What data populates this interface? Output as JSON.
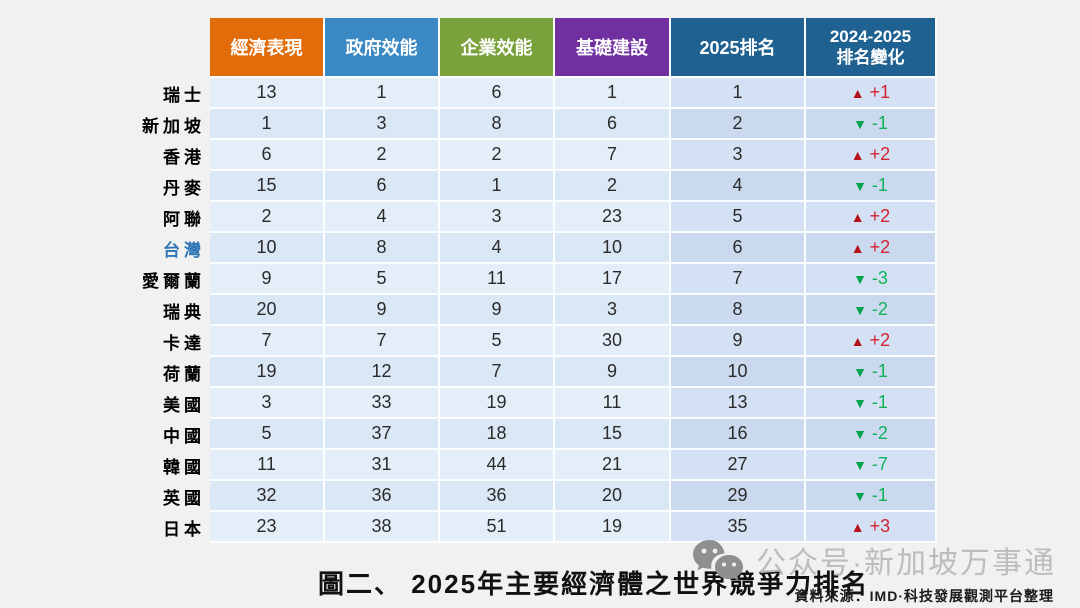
{
  "table": {
    "headers": [
      {
        "label": "經濟表現",
        "color": "#E36C0A"
      },
      {
        "label": "政府效能",
        "color": "#3A89C4"
      },
      {
        "label": "企業效能",
        "color": "#7AA23C"
      },
      {
        "label": "基礎建設",
        "color": "#7030A0"
      },
      {
        "label": "2025排名",
        "color": "#1F6190"
      },
      {
        "label": "2024-2025 排名變化",
        "line1": "2024-2025",
        "line2": "排名變化",
        "color": "#1F6190"
      }
    ],
    "rows": [
      {
        "country": "瑞士",
        "scores": [
          "13",
          "1",
          "6",
          "1"
        ],
        "rank": "1",
        "change": {
          "dir": "up",
          "label": "+1"
        }
      },
      {
        "country": "新加坡",
        "scores": [
          "1",
          "3",
          "8",
          "6"
        ],
        "rank": "2",
        "change": {
          "dir": "down",
          "label": "-1"
        }
      },
      {
        "country": "香港",
        "scores": [
          "6",
          "2",
          "2",
          "7"
        ],
        "rank": "3",
        "change": {
          "dir": "up",
          "label": "+2"
        }
      },
      {
        "country": "丹麥",
        "scores": [
          "15",
          "6",
          "1",
          "2"
        ],
        "rank": "4",
        "change": {
          "dir": "down",
          "label": "-1"
        }
      },
      {
        "country": "阿聯",
        "scores": [
          "2",
          "4",
          "3",
          "23"
        ],
        "rank": "5",
        "change": {
          "dir": "up",
          "label": "+2"
        }
      },
      {
        "country": "台灣",
        "scores": [
          "10",
          "8",
          "4",
          "10"
        ],
        "rank": "6",
        "change": {
          "dir": "up",
          "label": "+2"
        },
        "highlight": true
      },
      {
        "country": "愛爾蘭",
        "scores": [
          "9",
          "5",
          "11",
          "17"
        ],
        "rank": "7",
        "change": {
          "dir": "down",
          "label": "-3"
        }
      },
      {
        "country": "瑞典",
        "scores": [
          "20",
          "9",
          "9",
          "3"
        ],
        "rank": "8",
        "change": {
          "dir": "down",
          "label": "-2"
        }
      },
      {
        "country": "卡達",
        "scores": [
          "7",
          "7",
          "5",
          "30"
        ],
        "rank": "9",
        "change": {
          "dir": "up",
          "label": "+2"
        }
      },
      {
        "country": "荷蘭",
        "scores": [
          "19",
          "12",
          "7",
          "9"
        ],
        "rank": "10",
        "change": {
          "dir": "down",
          "label": "-1"
        }
      },
      {
        "country": "美國",
        "scores": [
          "3",
          "33",
          "19",
          "11"
        ],
        "rank": "13",
        "change": {
          "dir": "down",
          "label": "-1"
        }
      },
      {
        "country": "中國",
        "scores": [
          "5",
          "37",
          "18",
          "15"
        ],
        "rank": "16",
        "change": {
          "dir": "down",
          "label": "-2"
        }
      },
      {
        "country": "韓國",
        "scores": [
          "11",
          "31",
          "44",
          "21"
        ],
        "rank": "27",
        "change": {
          "dir": "down",
          "label": "-7"
        }
      },
      {
        "country": "英國",
        "scores": [
          "32",
          "36",
          "36",
          "20"
        ],
        "rank": "29",
        "change": {
          "dir": "down",
          "label": "-1"
        }
      },
      {
        "country": "日本",
        "scores": [
          "23",
          "38",
          "51",
          "19"
        ],
        "rank": "35",
        "change": {
          "dir": "up",
          "label": "+3"
        }
      }
    ]
  },
  "caption": "圖二、 2025年主要經濟體之世界競爭力排名",
  "watermark": {
    "text": "公众号·新加坡万事通",
    "icon": "wechat-icon"
  },
  "source": "資料來源：IMD·科技發展觀測平台整理",
  "icons": {
    "up_triangle": "▲",
    "down_triangle": "▼"
  },
  "colors": {
    "up_red_triangle": "#B5121B",
    "up_red_text": "#D12330",
    "down_green_triangle": "#00A44C",
    "down_green_text": "#12B25C",
    "highlight_country": "#2E75B6",
    "cell_light_a": "#E3EEF9",
    "cell_light_b": "#DAE7F4",
    "cell_dark_a": "#D4E0F3",
    "cell_dark_b": "#CBD9EE",
    "page_background": "#F1F1F1"
  },
  "chart_data": {
    "type": "table",
    "title": "圖二、 2025年主要經濟體之世界競爭力排名",
    "columns": [
      "經濟表現",
      "政府效能",
      "企業效能",
      "基礎建設",
      "2025排名",
      "2024-2025排名變化"
    ],
    "rows": [
      [
        "瑞士",
        13,
        1,
        6,
        1,
        1,
        "+1"
      ],
      [
        "新加坡",
        1,
        3,
        8,
        6,
        2,
        "-1"
      ],
      [
        "香港",
        6,
        2,
        2,
        7,
        3,
        "+2"
      ],
      [
        "丹麥",
        15,
        6,
        1,
        2,
        4,
        "-1"
      ],
      [
        "阿聯",
        2,
        4,
        3,
        23,
        5,
        "+2"
      ],
      [
        "台灣",
        10,
        8,
        4,
        10,
        6,
        "+2"
      ],
      [
        "愛爾蘭",
        9,
        5,
        11,
        17,
        7,
        "-3"
      ],
      [
        "瑞典",
        20,
        9,
        9,
        3,
        8,
        "-2"
      ],
      [
        "卡達",
        7,
        7,
        5,
        30,
        9,
        "+2"
      ],
      [
        "荷蘭",
        19,
        12,
        7,
        9,
        10,
        "-1"
      ],
      [
        "美國",
        3,
        33,
        19,
        11,
        13,
        "-1"
      ],
      [
        "中國",
        5,
        37,
        18,
        15,
        16,
        "-2"
      ],
      [
        "韓國",
        11,
        31,
        44,
        21,
        27,
        "-7"
      ],
      [
        "英國",
        32,
        36,
        36,
        20,
        29,
        "-1"
      ],
      [
        "日本",
        23,
        38,
        51,
        19,
        35,
        "+3"
      ]
    ],
    "legend_position": "none",
    "grid": "banded-rows"
  }
}
